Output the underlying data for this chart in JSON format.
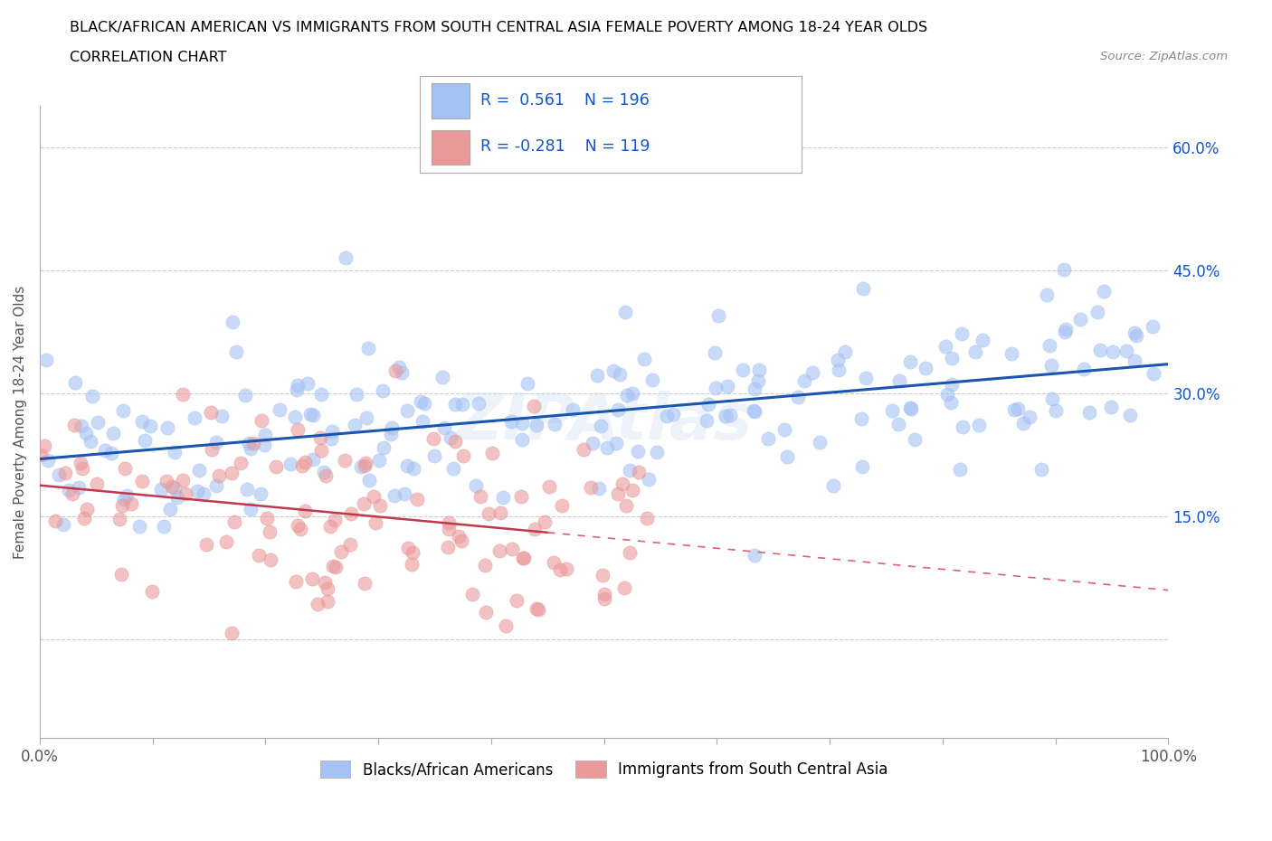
{
  "title_line1": "BLACK/AFRICAN AMERICAN VS IMMIGRANTS FROM SOUTH CENTRAL ASIA FEMALE POVERTY AMONG 18-24 YEAR OLDS",
  "title_line2": "CORRELATION CHART",
  "source_text": "Source: ZipAtlas.com",
  "ylabel": "Female Poverty Among 18-24 Year Olds",
  "xlim": [
    0,
    1.0
  ],
  "ylim": [
    -0.12,
    0.65
  ],
  "ytick_positions": [
    0.0,
    0.15,
    0.3,
    0.45,
    0.6
  ],
  "ytick_labels": [
    "",
    "15.0%",
    "30.0%",
    "45.0%",
    "60.0%"
  ],
  "blue_color": "#a4c2f4",
  "pink_color": "#ea9999",
  "blue_line_color": "#1a56b0",
  "pink_line_color": "#c0394b",
  "pink_line_dash_color": "#e06070",
  "R_blue": 0.561,
  "N_blue": 196,
  "R_pink": -0.281,
  "N_pink": 119,
  "legend_text_color": "#1155cc",
  "grid_color": "#cccccc",
  "background_color": "#ffffff",
  "title_color": "#000000",
  "seed_blue": 42,
  "seed_pink": 7,
  "watermark_text": "ZIPAtlas",
  "legend_label_blue": "Blacks/African Americans",
  "legend_label_pink": "Immigrants from South Central Asia"
}
